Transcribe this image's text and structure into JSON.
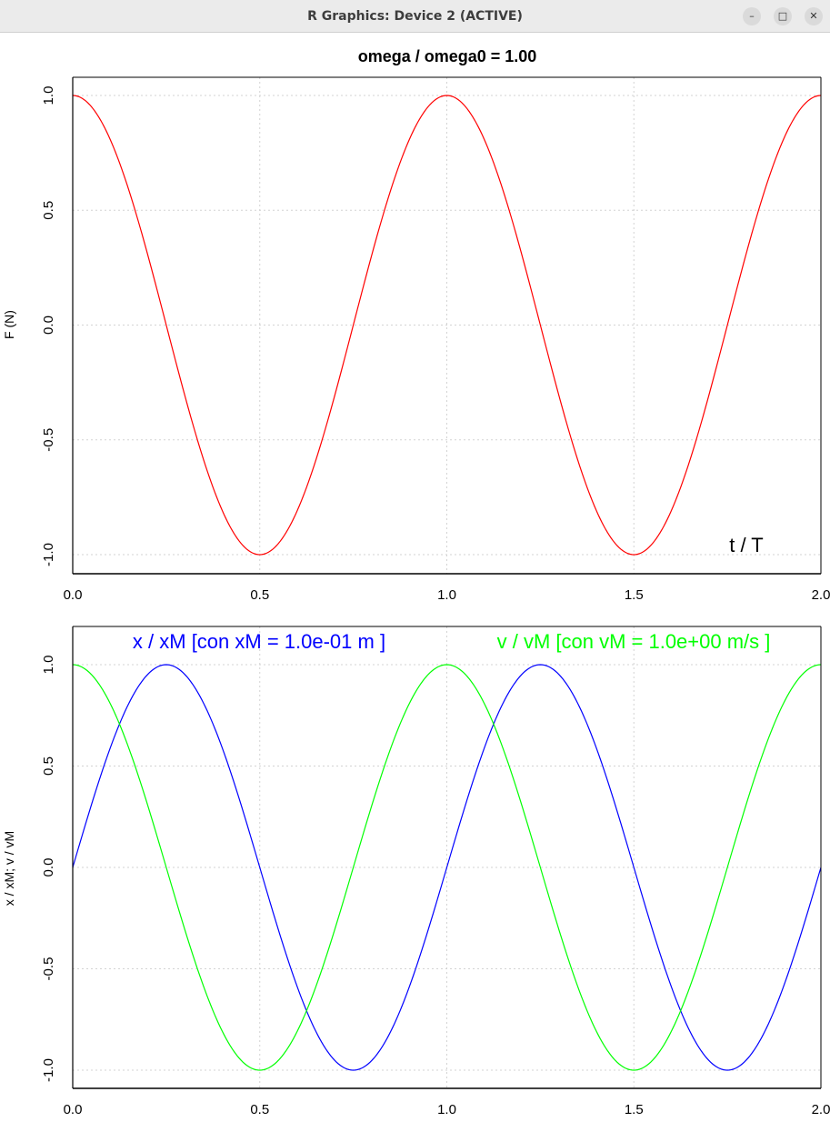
{
  "window": {
    "title": "R Graphics: Device 2 (ACTIVE)",
    "buttons": {
      "minimize_icon": "minimize-icon",
      "maximize_icon": "maximize-icon",
      "close_icon": "close-icon"
    }
  },
  "chart_data": [
    {
      "type": "line",
      "title": "omega / omega0  =  1.00",
      "ylabel": "F (N)",
      "annotation": "t / T",
      "xlim": [
        0,
        2
      ],
      "ylim": [
        -1,
        1
      ],
      "xticks": [
        "0.0",
        "0.5",
        "1.0",
        "1.5",
        "2.0"
      ],
      "yticks": [
        "-1.0",
        "-0.5",
        "0.0",
        "0.5",
        "1.0"
      ],
      "grid": true,
      "series": [
        {
          "function": "cos(2*pi*t)",
          "color": "#ff0000",
          "x": [
            0,
            0.25,
            0.5,
            0.75,
            1.0,
            1.25,
            1.5,
            1.75,
            2.0
          ],
          "values": [
            1,
            0,
            -1,
            0,
            1,
            0,
            -1,
            0,
            1
          ]
        }
      ]
    },
    {
      "type": "line",
      "ylabel": "x / xM;  v / vM",
      "xlim": [
        0,
        2
      ],
      "ylim": [
        -1,
        1
      ],
      "xticks": [
        "0.0",
        "0.5",
        "1.0",
        "1.5",
        "2.0"
      ],
      "yticks": [
        "-1.0",
        "-0.5",
        "0.0",
        "0.5",
        "1.0"
      ],
      "grid": true,
      "legend": [
        {
          "text": "x / xM  [con  xM = 1.0e-01 m ]",
          "color": "#0000ff"
        },
        {
          "text": "v / vM  [con  vM = 1.0e+00 m/s ]",
          "color": "#00ff00"
        }
      ],
      "series": [
        {
          "name": "x / xM",
          "function": "sin(2*pi*t)",
          "color": "#0000ff",
          "x": [
            0,
            0.25,
            0.5,
            0.75,
            1.0,
            1.25,
            1.5,
            1.75,
            2.0
          ],
          "values": [
            0,
            1,
            0,
            -1,
            0,
            1,
            0,
            -1,
            0
          ]
        },
        {
          "name": "v / vM",
          "function": "cos(2*pi*t)",
          "color": "#00ff00",
          "x": [
            0,
            0.25,
            0.5,
            0.75,
            1.0,
            1.25,
            1.5,
            1.75,
            2.0
          ],
          "values": [
            1,
            0,
            -1,
            0,
            1,
            0,
            -1,
            0,
            1
          ]
        }
      ]
    }
  ]
}
